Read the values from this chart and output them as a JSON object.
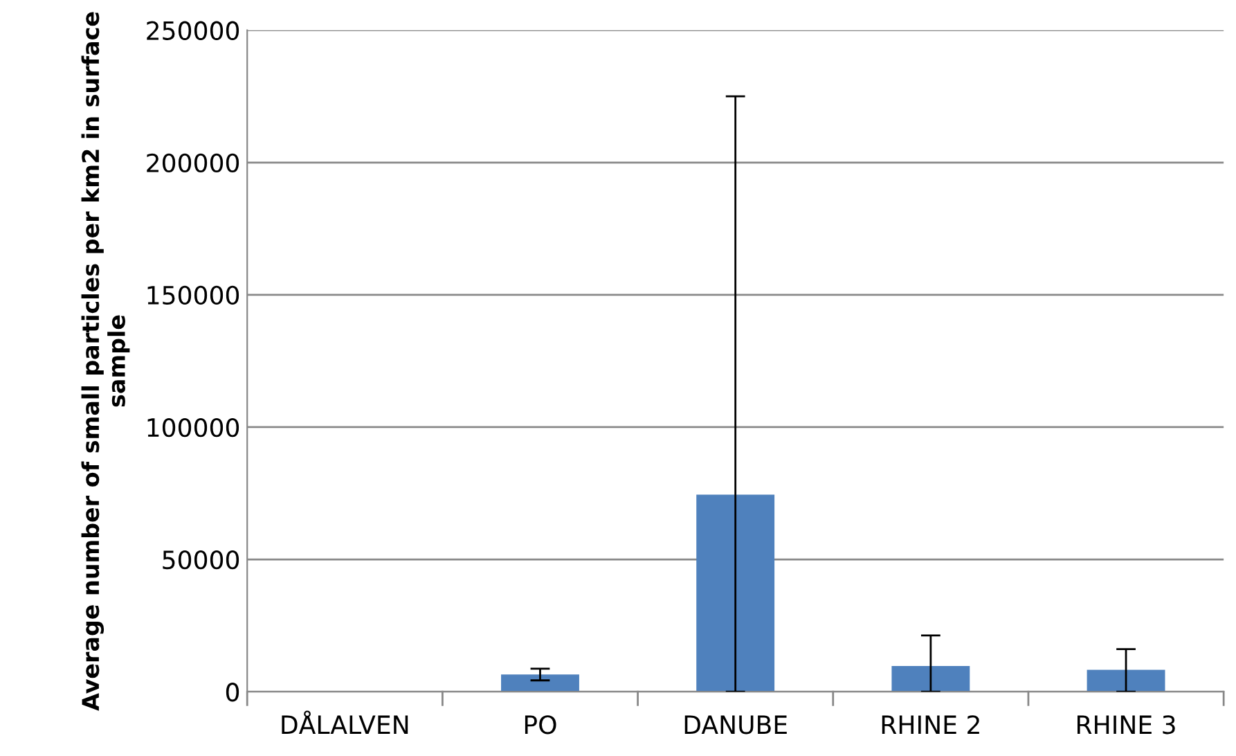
{
  "chart_data": {
    "type": "bar",
    "ylabel": "Average number of small particles per km2 in surface sample",
    "categories": [
      "DÅLALVEN",
      "PO",
      "DANUBE",
      "RHINE 2",
      "RHINE 3"
    ],
    "values": [
      0,
      6500,
      74500,
      9700,
      8300
    ],
    "errors": [
      null,
      2200,
      [
        0,
        225000
      ],
      [
        0,
        21300
      ],
      [
        0,
        16100
      ]
    ],
    "color": "#4f81bd",
    "ylim": [
      0,
      250000
    ],
    "yticks": [
      0,
      50000,
      100000,
      150000,
      200000,
      250000
    ],
    "grid": "y",
    "legend": false
  }
}
